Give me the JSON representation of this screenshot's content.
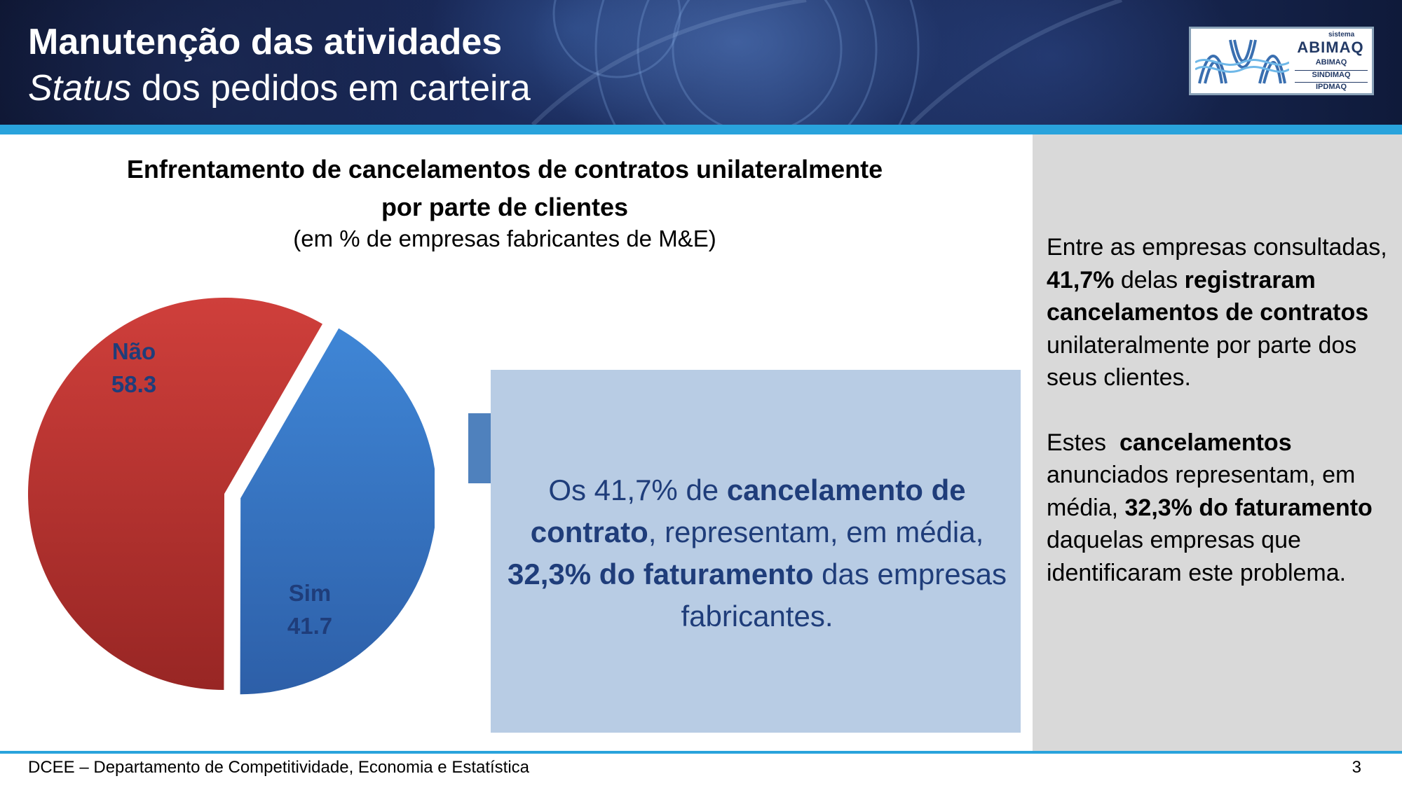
{
  "header": {
    "title_line1": "Manutenção das atividades",
    "title_line2_italic": "Status",
    "title_line2_rest": " dos pedidos em carteira"
  },
  "logo": {
    "small": "sistema",
    "brand": "ABIMAQ",
    "subs": [
      "ABIMAQ",
      "SINDIMAQ",
      "IPDMAQ"
    ]
  },
  "chart_data": {
    "type": "pie",
    "title_line1": "Enfrentamento de cancelamentos de contratos unilateralmente",
    "title_line2": "por parte de clientes",
    "subtitle": "(em % de empresas fabricantes de M&E)",
    "slices": [
      {
        "label": "Não",
        "value": 58.3,
        "value_text": "58.3",
        "color": "#c0392b"
      },
      {
        "label": "Sim",
        "value": 41.7,
        "value_text": "41.7",
        "color": "#3a78c9"
      }
    ],
    "legend": "none"
  },
  "callout": {
    "p1": "Os 41,7% de ",
    "b1": "cancelamento de contrato",
    "p2": ", representam, em média, ",
    "b2": "32,3% do faturamento",
    "p3": " das empresas fabricantes."
  },
  "side": {
    "para1_a": "Entre as empresas consultadas, ",
    "para1_b": "41,7%",
    "para1_c": " delas ",
    "para1_d": "registraram cancelamentos de contratos",
    "para1_e": " unilateralmente por parte dos seus clientes.",
    "para2_a": "Estes  ",
    "para2_b": "cancelamentos",
    "para2_c": " anunciados representam, em média, ",
    "para2_d": "32,3% do faturamento",
    "para2_e": " daquelas empresas que identificaram este problema."
  },
  "footer": {
    "text": "DCEE – Departamento de Competitividade, Economia e Estatística",
    "page": "3"
  },
  "colors": {
    "accent_rule": "#29a3dc",
    "callout_bg": "#b8cce4",
    "callout_text": "#1f3d7a",
    "pie_label": "#1f3d7a",
    "side_bg": "#d9d9d9"
  }
}
